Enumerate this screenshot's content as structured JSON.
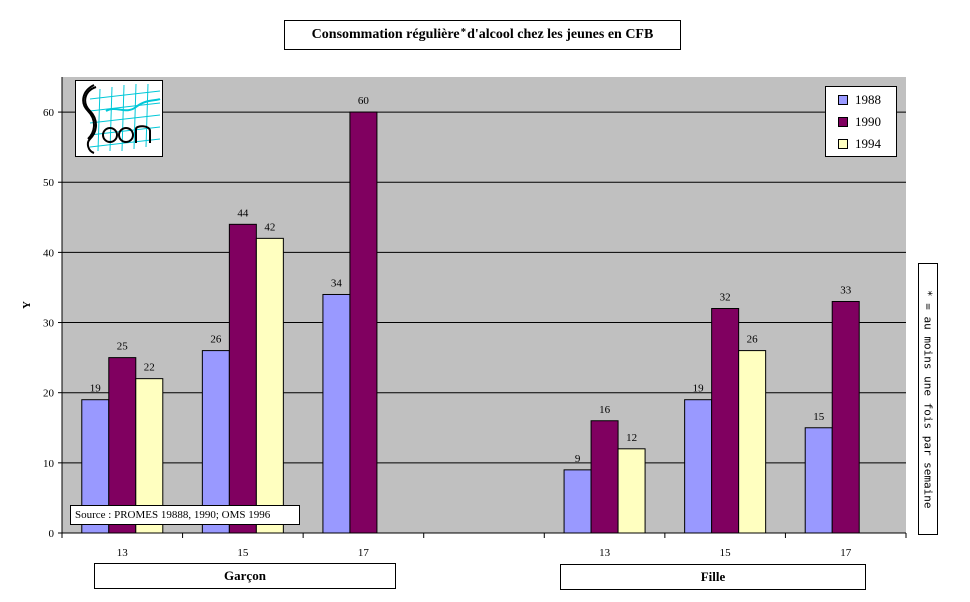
{
  "title": {
    "main": "Consommation régulière",
    "star": "*",
    "rest": "d'alcool  chez les jeunes en CFB"
  },
  "source_note": "Source : PROMES 19888, 1990; OMS 1996",
  "side_note": "* = au moins une fois par semaine",
  "colors": {
    "plot_bg": "#c0c0c0",
    "s1988": "#9999ff",
    "s1990": "#800060",
    "s1994": "#ffffc0"
  },
  "chart_data": {
    "type": "bar",
    "title": "Consommation régulière * d'alcool chez les jeunes en CFB",
    "ylabel": "Y",
    "xlabel": "",
    "ylim": [
      0,
      65
    ],
    "yticks": [
      0,
      10,
      20,
      30,
      40,
      50,
      60
    ],
    "grid": true,
    "legend_position": "top-right",
    "groups": [
      "Garçon",
      "Fille"
    ],
    "categories": [
      "13",
      "15",
      "17",
      "",
      "13",
      "15",
      "17"
    ],
    "category_group": [
      "Garçon",
      "Garçon",
      "Garçon",
      "",
      "Fille",
      "Fille",
      "Fille"
    ],
    "series": [
      {
        "name": "1988",
        "values": [
          19,
          26,
          34,
          null,
          9,
          19,
          15
        ]
      },
      {
        "name": "1990",
        "values": [
          25,
          44,
          60,
          null,
          16,
          32,
          33
        ]
      },
      {
        "name": "1994",
        "values": [
          22,
          42,
          null,
          null,
          12,
          26,
          null
        ]
      }
    ]
  }
}
